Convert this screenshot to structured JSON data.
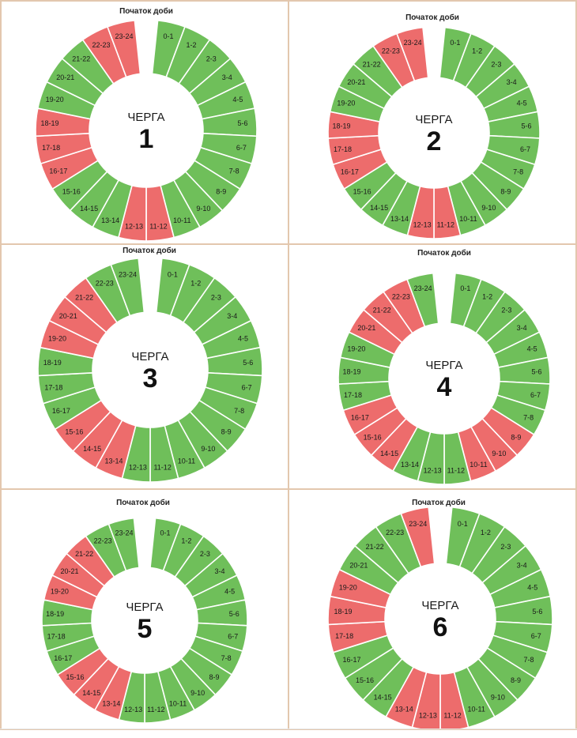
{
  "schedule_label": "Початок доби",
  "queue_label": "ЧЕРГА",
  "hour_labels": [
    "0-1",
    "1-2",
    "2-3",
    "3-4",
    "4-5",
    "5-6",
    "6-7",
    "7-8",
    "8-9",
    "9-10",
    "10-11",
    "11-12",
    "12-13",
    "13-14",
    "14-15",
    "15-16",
    "16-17",
    "17-18",
    "18-19",
    "19-20",
    "20-21",
    "21-22",
    "22-23",
    "23-24"
  ],
  "colors": {
    "on": "#6fbf5a",
    "off": "#ed6c6c",
    "border": "#e3c7ae"
  },
  "queues": [
    {
      "number": "1",
      "outage_hours": [
        11,
        12,
        16,
        17,
        18,
        22,
        23
      ]
    },
    {
      "number": "2",
      "outage_hours": [
        11,
        12,
        16,
        17,
        18,
        22,
        23
      ]
    },
    {
      "number": "3",
      "outage_hours": [
        13,
        14,
        15,
        19,
        20,
        21
      ]
    },
    {
      "number": "4",
      "outage_hours": [
        8,
        9,
        10,
        14,
        15,
        16,
        20,
        21,
        22
      ]
    },
    {
      "number": "5",
      "outage_hours": [
        13,
        14,
        15,
        19,
        20,
        21
      ]
    },
    {
      "number": "6",
      "outage_hours": [
        11,
        12,
        13,
        17,
        18,
        19,
        23
      ]
    }
  ]
}
